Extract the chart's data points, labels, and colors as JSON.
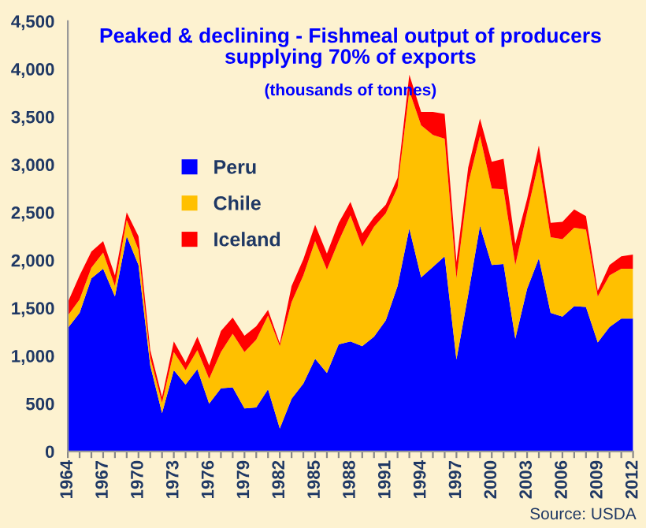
{
  "chart_data": {
    "type": "area",
    "stacked": true,
    "title": "Peaked & declining - Fishmeal output of producers\nsupplying 70% of exports",
    "subtitle": "(thousands of tonnes)",
    "annotations": [
      "Source: USDA"
    ],
    "x": [
      1964,
      1965,
      1966,
      1967,
      1968,
      1969,
      1970,
      1971,
      1972,
      1973,
      1974,
      1975,
      1976,
      1977,
      1978,
      1979,
      1980,
      1981,
      1982,
      1983,
      1984,
      1985,
      1986,
      1987,
      1988,
      1989,
      1990,
      1991,
      1992,
      1993,
      1994,
      1995,
      1996,
      1997,
      1998,
      1999,
      2000,
      2001,
      2002,
      2003,
      2004,
      2005,
      2006,
      2007,
      2008,
      2009,
      2010,
      2011,
      2012
    ],
    "series": [
      {
        "name": "Peru",
        "color": "#0000ff",
        "values": [
          1290,
          1450,
          1810,
          1910,
          1620,
          2250,
          1950,
          900,
          400,
          850,
          700,
          860,
          500,
          660,
          670,
          450,
          460,
          650,
          240,
          550,
          710,
          970,
          820,
          1120,
          1150,
          1100,
          1200,
          1370,
          1730,
          2330,
          1820,
          1930,
          2040,
          960,
          1640,
          2360,
          1950,
          1960,
          1180,
          1700,
          2020,
          1450,
          1410,
          1520,
          1510,
          1140,
          1300,
          1390,
          1390
        ]
      },
      {
        "name": "Chile",
        "color": "#ffc000",
        "values": [
          130,
          140,
          110,
          170,
          110,
          170,
          160,
          80,
          110,
          190,
          150,
          200,
          260,
          380,
          560,
          590,
          710,
          770,
          860,
          1010,
          1130,
          1230,
          1080,
          1080,
          1320,
          1040,
          1150,
          1120,
          1030,
          1440,
          1590,
          1380,
          1230,
          850,
          1160,
          940,
          800,
          780,
          770,
          800,
          1010,
          790,
          810,
          820,
          810,
          480,
          540,
          520,
          520
        ]
      },
      {
        "name": "Iceland",
        "color": "#ff0000",
        "values": [
          140,
          250,
          170,
          120,
          110,
          80,
          140,
          80,
          60,
          110,
          80,
          140,
          140,
          220,
          170,
          170,
          140,
          60,
          30,
          170,
          170,
          170,
          170,
          190,
          140,
          140,
          100,
          90,
          100,
          170,
          140,
          240,
          260,
          170,
          170,
          180,
          280,
          320,
          220,
          140,
          170,
          150,
          180,
          190,
          140,
          60,
          110,
          130,
          150
        ]
      }
    ],
    "xlim": [
      1964,
      2012
    ],
    "xticks": [
      {
        "value": 1964,
        "label": "1964"
      },
      {
        "value": 1965,
        "label": null
      },
      {
        "value": 1966,
        "label": null
      },
      {
        "value": 1967,
        "label": "1967"
      },
      {
        "value": 1968,
        "label": null
      },
      {
        "value": 1969,
        "label": null
      },
      {
        "value": 1970,
        "label": "1970"
      },
      {
        "value": 1971,
        "label": null
      },
      {
        "value": 1972,
        "label": null
      },
      {
        "value": 1973,
        "label": "1973"
      },
      {
        "value": 1974,
        "label": null
      },
      {
        "value": 1975,
        "label": null
      },
      {
        "value": 1976,
        "label": "1976"
      },
      {
        "value": 1977,
        "label": null
      },
      {
        "value": 1978,
        "label": null
      },
      {
        "value": 1979,
        "label": "1979"
      },
      {
        "value": 1980,
        "label": null
      },
      {
        "value": 1981,
        "label": null
      },
      {
        "value": 1982,
        "label": "1982"
      },
      {
        "value": 1983,
        "label": null
      },
      {
        "value": 1984,
        "label": null
      },
      {
        "value": 1985,
        "label": "1985"
      },
      {
        "value": 1986,
        "label": null
      },
      {
        "value": 1987,
        "label": null
      },
      {
        "value": 1988,
        "label": "1988"
      },
      {
        "value": 1989,
        "label": null
      },
      {
        "value": 1990,
        "label": null
      },
      {
        "value": 1991,
        "label": "1991"
      },
      {
        "value": 1992,
        "label": null
      },
      {
        "value": 1993,
        "label": null
      },
      {
        "value": 1994,
        "label": "1994"
      },
      {
        "value": 1995,
        "label": null
      },
      {
        "value": 1996,
        "label": null
      },
      {
        "value": 1997,
        "label": "1997"
      },
      {
        "value": 1998,
        "label": null
      },
      {
        "value": 1999,
        "label": null
      },
      {
        "value": 2000,
        "label": "2000"
      },
      {
        "value": 2001,
        "label": null
      },
      {
        "value": 2002,
        "label": null
      },
      {
        "value": 2003,
        "label": "2003"
      },
      {
        "value": 2004,
        "label": null
      },
      {
        "value": 2005,
        "label": null
      },
      {
        "value": 2006,
        "label": "2006"
      },
      {
        "value": 2007,
        "label": null
      },
      {
        "value": 2008,
        "label": null
      },
      {
        "value": 2009,
        "label": "2009"
      },
      {
        "value": 2010,
        "label": null
      },
      {
        "value": 2011,
        "label": null
      },
      {
        "value": 2012,
        "label": "2012"
      }
    ],
    "ylim": [
      0,
      4500
    ],
    "yticks": [
      0,
      {
        "value": 500,
        "label": "500"
      },
      {
        "value": 1000,
        "label": "1,000"
      },
      {
        "value": 1500,
        "label": "1,500"
      },
      {
        "value": 2000,
        "label": "2,000"
      },
      {
        "value": 2500,
        "label": "2,500"
      },
      {
        "value": 3000,
        "label": "3,000"
      },
      {
        "value": 3500,
        "label": "3,500"
      },
      {
        "value": 4000,
        "label": "4,000"
      },
      {
        "value": 4500,
        "label": "4,500"
      }
    ],
    "legend": "upper left",
    "grid": false
  }
}
